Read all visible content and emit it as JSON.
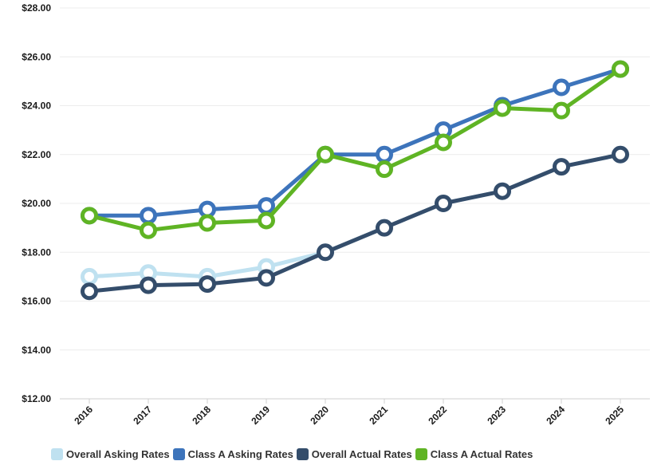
{
  "chart_data": {
    "type": "line",
    "x": [
      "2016",
      "2017",
      "2018",
      "2019",
      "2020",
      "2021",
      "2022",
      "2023",
      "2024",
      "2025"
    ],
    "ylim": [
      12,
      28
    ],
    "y_ticks": [
      12,
      14,
      16,
      18,
      20,
      22,
      24,
      26,
      28
    ],
    "y_tick_labels": [
      "$12.00",
      "$14.00",
      "$16.00",
      "$18.00",
      "$20.00",
      "$22.00",
      "$24.00",
      "$26.00",
      "$28.00"
    ],
    "grid": "horizontal",
    "legend_position": "bottom",
    "series": [
      {
        "name": "Overall Asking Rates",
        "color": "#bfe1f0",
        "values": [
          17.0,
          17.15,
          17.0,
          17.4,
          18.0,
          19.0,
          20.0,
          20.5,
          21.5,
          22.0
        ]
      },
      {
        "name": "Class A Asking Rates",
        "color": "#3d74bb",
        "values": [
          19.5,
          19.5,
          19.75,
          19.9,
          22.0,
          22.0,
          23.0,
          24.0,
          24.75,
          25.5
        ]
      },
      {
        "name": "Overall Actual Rates",
        "color": "#344d6b",
        "values": [
          16.4,
          16.65,
          16.7,
          16.95,
          18.0,
          19.0,
          20.0,
          20.5,
          21.5,
          22.0
        ]
      },
      {
        "name": "Class A Actual Rates",
        "color": "#5fb424",
        "values": [
          19.5,
          18.9,
          19.2,
          19.3,
          22.0,
          21.4,
          22.5,
          23.9,
          23.8,
          25.5
        ]
      }
    ]
  }
}
